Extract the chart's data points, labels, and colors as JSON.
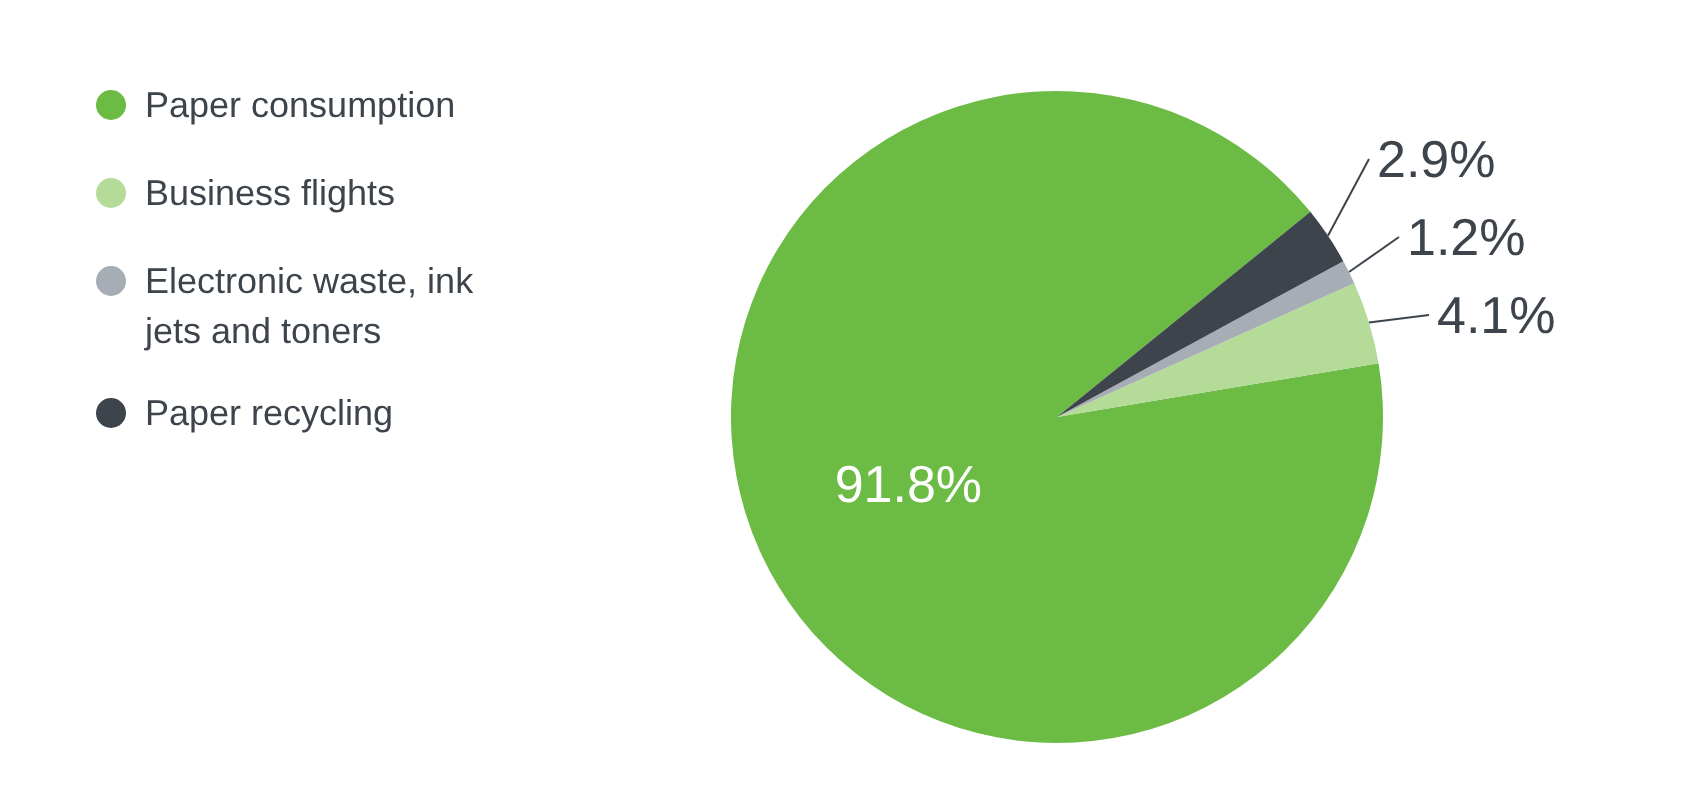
{
  "chart_data": {
    "type": "pie",
    "categories": [
      "Paper consumption",
      "Business flights",
      "Electronic waste, ink jets and toners",
      "Paper recycling"
    ],
    "values": [
      91.8,
      4.1,
      1.2,
      2.9
    ],
    "colors": [
      "#6cbb45",
      "#b5db98",
      "#a7adb4",
      "#3d444c"
    ],
    "value_labels": [
      "91.8%",
      "4.1%",
      "1.2%",
      "2.9%"
    ],
    "legend": "top left"
  }
}
